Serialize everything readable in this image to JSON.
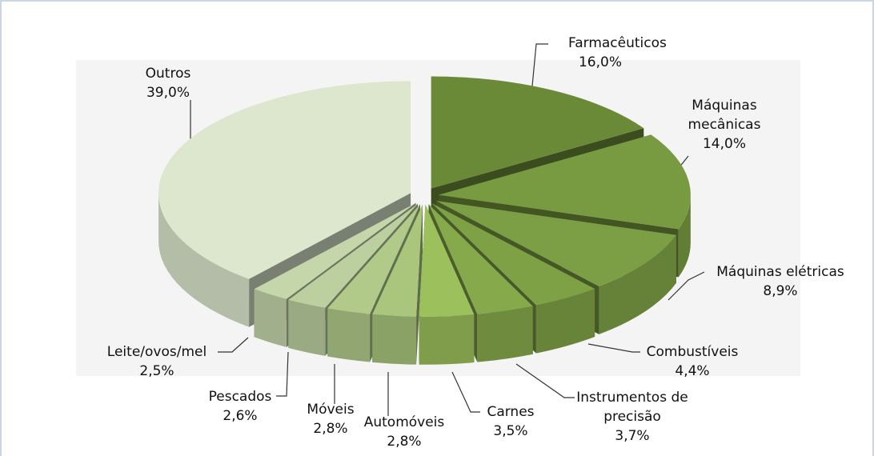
{
  "chart_data": {
    "type": "pie",
    "categories": [
      "Farmacêuticos",
      "Máquinas mecânicas",
      "Máquinas elétricas",
      "Combustíveis",
      "Instrumentos de precisão",
      "Carnes",
      "Automóveis",
      "Móveis",
      "Pescados",
      "Leite/ovos/mel",
      "Outros"
    ],
    "values": [
      16.0,
      14.0,
      8.9,
      4.4,
      3.7,
      3.5,
      2.8,
      2.8,
      2.6,
      2.5,
      39.0
    ],
    "value_labels": [
      "16,0%",
      "14,0%",
      "8,9%",
      "4,4%",
      "3,7%",
      "3,5%",
      "2,8%",
      "2,8%",
      "2,6%",
      "2,5%",
      "39,0%"
    ],
    "colors": [
      "#6b8a38",
      "#789a40",
      "#7c9e44",
      "#7fa146",
      "#86a94c",
      "#9cc05c",
      "#a9c67c",
      "#b1ca8a",
      "#bccf9f",
      "#c5d6ab",
      "#dce7cd"
    ]
  }
}
